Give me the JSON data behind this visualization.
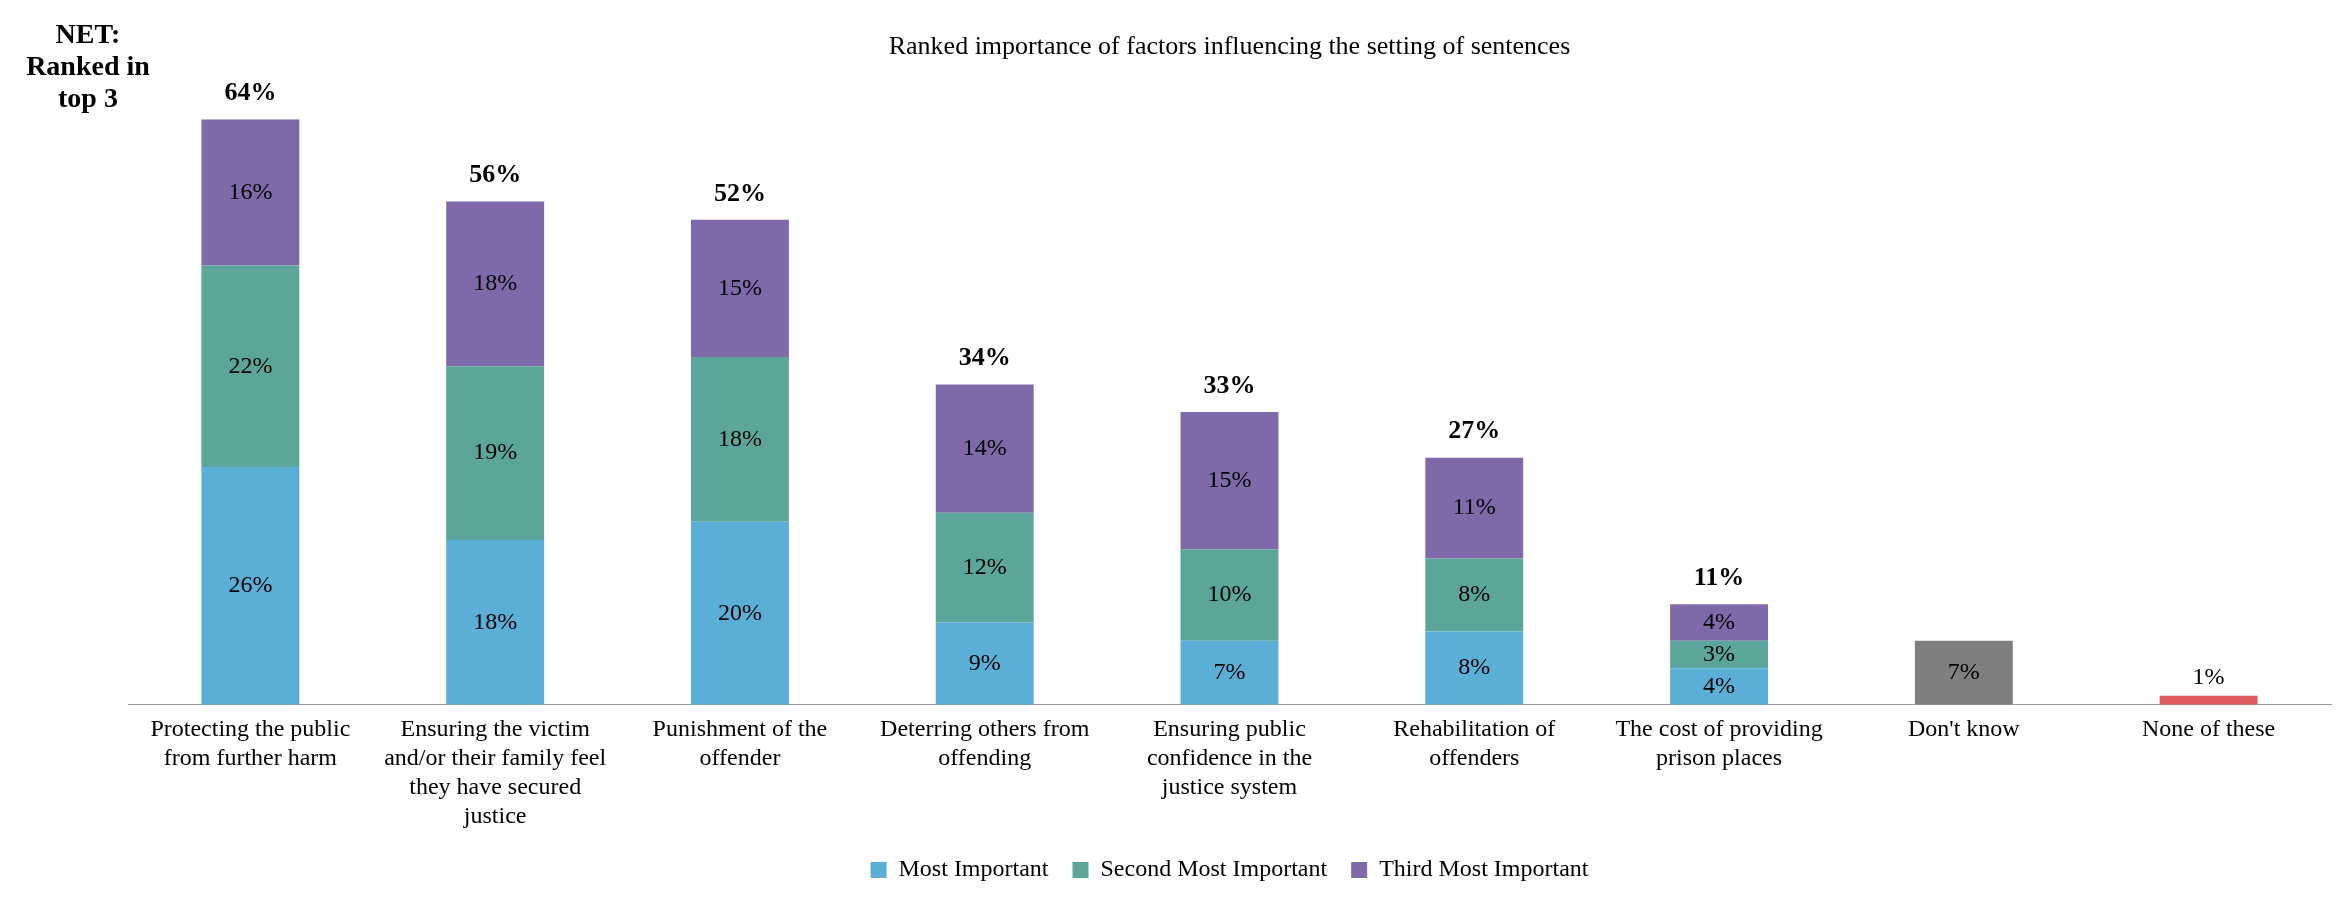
{
  "chart_data": {
    "type": "bar",
    "stacked": true,
    "title": "Ranked importance of factors influencing the setting of sentences",
    "categories": [
      "Protecting the public from further harm",
      "Ensuring the victim and/or their family feel they have secured justice",
      "Punishment of the offender",
      "Deterring others from offending",
      "Ensuring public confidence in the justice system",
      "Rehabilitation of offenders",
      "The cost of providing prison places",
      "Don't know",
      "None of these"
    ],
    "series": [
      {
        "name": "Most Important",
        "color": "#5bafd6",
        "colors": [
          "#5bafd6",
          "#5bafd6",
          "#5bafd6",
          "#5bafd6",
          "#5bafd6",
          "#5bafd6",
          "#5bafd6",
          "#7f7f7f",
          "#e05c5c"
        ],
        "values": [
          26,
          18,
          20,
          9,
          7,
          8,
          4,
          7,
          1
        ],
        "value_labels": [
          "26%",
          "18%",
          "20%",
          "9%",
          "7%",
          "8%",
          "4%",
          "7%",
          "1%"
        ]
      },
      {
        "name": "Second Most Important",
        "color": "#5ba59a",
        "values": [
          22,
          19,
          18,
          12,
          10,
          8,
          3,
          null,
          null
        ],
        "value_labels": [
          "22%",
          "19%",
          "18%",
          "12%",
          "10%",
          "8%",
          "3%",
          null,
          null
        ]
      },
      {
        "name": "Third Most Important",
        "color": "#8069a8",
        "values": [
          16,
          18,
          15,
          14,
          15,
          11,
          4,
          null,
          null
        ],
        "value_labels": [
          "16%",
          "18%",
          "15%",
          "14%",
          "15%",
          "11%",
          "4%",
          null,
          null
        ]
      }
    ],
    "totals": [
      "64%",
      "56%",
      "52%",
      "34%",
      "33%",
      "27%",
      "11%",
      null,
      null
    ],
    "annotations": [
      "NET: Ranked in top 3"
    ],
    "legend": "bottom",
    "grid": false,
    "tick_labels": "x"
  }
}
